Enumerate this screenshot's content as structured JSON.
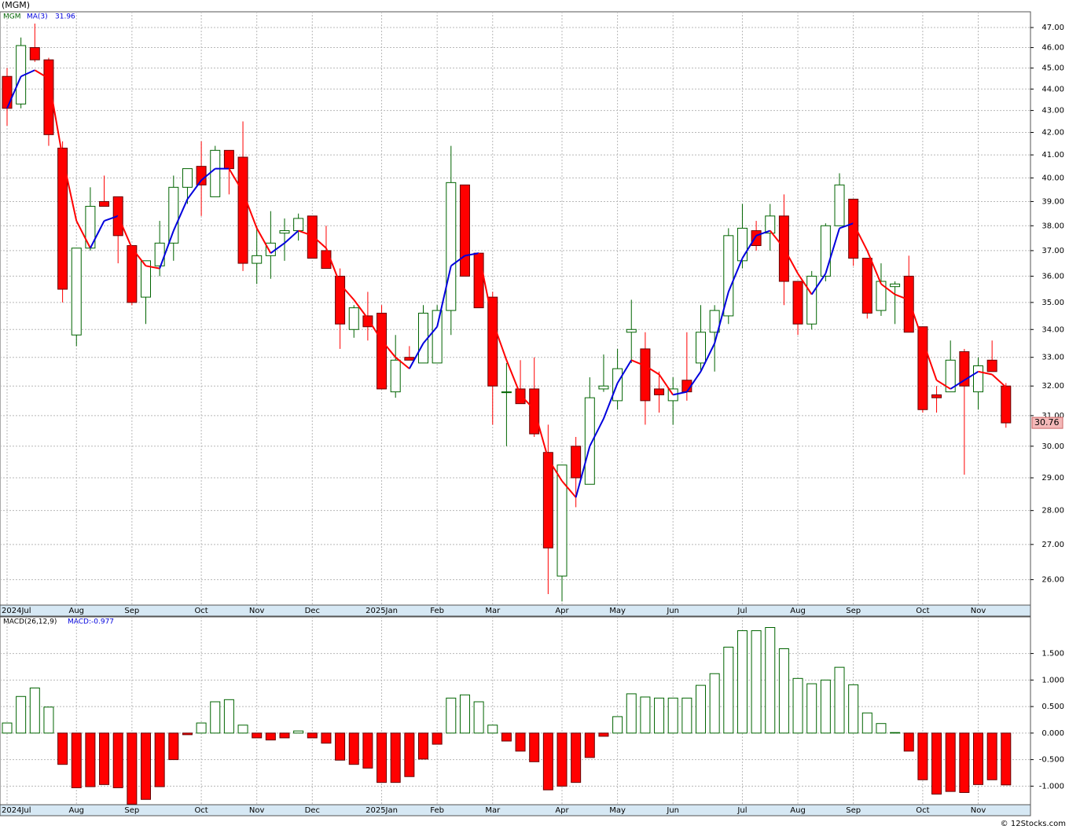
{
  "chart_data": [
    {
      "type": "candlestick",
      "title": "(MGM)",
      "ticker": "MGM",
      "categories": [
        "2024Jul",
        null,
        null,
        null,
        null,
        "Aug",
        null,
        null,
        null,
        "Sep",
        null,
        null,
        null,
        null,
        "Oct",
        null,
        null,
        null,
        "Nov",
        null,
        null,
        null,
        "Dec",
        null,
        null,
        null,
        null,
        "2025Jan",
        null,
        null,
        null,
        "Feb",
        null,
        null,
        null,
        "Mar",
        null,
        null,
        null,
        null,
        "Apr",
        null,
        null,
        null,
        "May",
        null,
        null,
        null,
        "Jun",
        null,
        null,
        null,
        null,
        "Jul",
        null,
        null,
        null,
        "Aug",
        null,
        null,
        null,
        "Sep",
        null,
        null,
        null,
        null,
        "Oct",
        null,
        null,
        null,
        "Nov",
        null,
        null
      ],
      "open": [
        44.6,
        43.3,
        46.0,
        45.4,
        41.3,
        33.8,
        37.1,
        39.0,
        39.2,
        37.2,
        35.2,
        36.4,
        37.3,
        39.6,
        40.5,
        39.2,
        41.2,
        40.9,
        36.5,
        36.8,
        37.7,
        37.8,
        38.4,
        37.0,
        36.0,
        34.0,
        34.5,
        34.6,
        31.8,
        33.0,
        32.8,
        32.8,
        34.7,
        39.7,
        36.9,
        35.2,
        31.8,
        31.9,
        31.9,
        29.8,
        26.1,
        30.0,
        28.8,
        31.9,
        31.5,
        33.9,
        33.3,
        31.9,
        31.5,
        32.2,
        32.8,
        33.9,
        34.5,
        36.6,
        37.8,
        37.7,
        38.4,
        35.8,
        34.2,
        36.0,
        38.0,
        39.1,
        36.7,
        34.7,
        35.6,
        36.0,
        34.1,
        31.7,
        31.8,
        33.2,
        31.8,
        32.9,
        32.0
      ],
      "high": [
        45.0,
        46.5,
        47.2,
        45.5,
        41.6,
        37.1,
        39.6,
        40.1,
        39.2,
        37.2,
        36.6,
        38.2,
        40.1,
        40.4,
        41.6,
        41.4,
        41.2,
        42.5,
        38.0,
        38.6,
        38.3,
        38.5,
        38.4,
        38.0,
        36.3,
        34.9,
        35.4,
        34.9,
        33.8,
        33.4,
        34.9,
        34.9,
        41.4,
        39.7,
        36.9,
        35.4,
        32.8,
        32.9,
        33.0,
        30.7,
        29.4,
        30.3,
        32.3,
        33.1,
        33.3,
        35.1,
        33.9,
        32.5,
        32.3,
        33.9,
        34.9,
        34.9,
        37.9,
        38.9,
        38.2,
        38.9,
        39.3,
        35.8,
        36.2,
        38.1,
        40.2,
        39.1,
        36.7,
        36.5,
        35.8,
        36.8,
        34.1,
        32.0,
        33.6,
        33.3,
        33.0,
        33.6,
        32.1
      ],
      "low": [
        42.3,
        43.1,
        45.3,
        41.4,
        35.0,
        33.4,
        37.0,
        38.8,
        36.5,
        34.9,
        34.2,
        36.0,
        36.6,
        38.9,
        38.4,
        39.2,
        39.3,
        36.2,
        35.7,
        35.9,
        36.6,
        37.4,
        36.7,
        36.3,
        33.3,
        33.7,
        33.6,
        31.9,
        31.6,
        32.9,
        32.8,
        32.8,
        33.8,
        36.0,
        34.8,
        30.7,
        30.0,
        31.4,
        30.3,
        25.6,
        25.4,
        28.1,
        28.8,
        31.8,
        31.2,
        32.8,
        30.7,
        31.1,
        30.7,
        31.5,
        32.5,
        32.5,
        34.2,
        36.3,
        37.0,
        37.0,
        34.9,
        33.8,
        34.0,
        35.8,
        38.0,
        36.4,
        34.4,
        34.5,
        34.2,
        33.9,
        31.1,
        31.1,
        31.8,
        29.1,
        31.2,
        32.5,
        30.6
      ],
      "close": [
        43.1,
        46.1,
        45.4,
        41.9,
        35.5,
        37.1,
        38.8,
        38.8,
        37.6,
        35.0,
        36.6,
        37.3,
        39.6,
        40.4,
        39.7,
        41.2,
        40.4,
        36.5,
        36.8,
        37.3,
        37.8,
        38.3,
        36.7,
        36.3,
        34.2,
        34.8,
        34.1,
        31.9,
        32.9,
        32.9,
        34.6,
        34.7,
        39.8,
        36.0,
        34.8,
        32.0,
        31.8,
        31.4,
        30.4,
        26.9,
        29.4,
        29.0,
        31.6,
        32.0,
        32.6,
        34.0,
        31.5,
        31.7,
        31.9,
        31.8,
        33.9,
        34.7,
        37.6,
        37.9,
        37.2,
        38.4,
        35.8,
        34.2,
        36.0,
        38.0,
        39.7,
        36.7,
        34.6,
        35.8,
        35.7,
        33.9,
        31.2,
        31.6,
        32.9,
        32.0,
        32.7,
        32.5,
        30.76
      ],
      "up_color": "#006400",
      "down_color": "#ff0000",
      "ma": {
        "name": "MA(3)",
        "up_color": "#0000dd",
        "down_color": "#ff0000",
        "values": [
          43.1,
          44.6,
          44.9,
          44.5,
          40.9,
          38.2,
          37.1,
          38.2,
          38.4,
          37.1,
          36.4,
          36.3,
          37.8,
          39.1,
          39.9,
          40.4,
          40.4,
          39.4,
          37.9,
          36.9,
          37.3,
          37.8,
          37.6,
          37.1,
          35.7,
          35.1,
          34.4,
          33.6,
          33.0,
          32.6,
          33.5,
          34.1,
          36.4,
          36.8,
          36.9,
          34.3,
          32.9,
          31.7,
          31.2,
          29.6,
          28.9,
          28.4,
          30.0,
          30.9,
          32.1,
          32.9,
          32.7,
          32.4,
          31.7,
          31.8,
          32.5,
          33.5,
          35.4,
          36.7,
          37.6,
          37.8,
          37.1,
          36.1,
          35.3,
          36.1,
          37.9,
          38.1,
          37.0,
          35.7,
          35.3,
          35.1,
          33.6,
          32.2,
          31.9,
          32.2,
          32.5,
          32.4,
          31.96
        ]
      },
      "ylim": [
        25.3,
        47.8
      ],
      "log_scale": true,
      "grid": true,
      "yticks": [
        {
          "value": 47,
          "label": "47.00"
        },
        {
          "value": 46,
          "label": "46.00"
        },
        {
          "value": 45,
          "label": "45.00"
        },
        {
          "value": 44,
          "label": "44.00"
        },
        {
          "value": 43,
          "label": "43.00"
        },
        {
          "value": 42,
          "label": "42.00"
        },
        {
          "value": 41,
          "label": "41.00"
        },
        {
          "value": 40,
          "label": "40.00"
        },
        {
          "value": 39,
          "label": "39.00"
        },
        {
          "value": 38,
          "label": "38.00"
        },
        {
          "value": 37,
          "label": "37.00"
        },
        {
          "value": 36,
          "label": "36.00"
        },
        {
          "value": 35,
          "label": "35.00"
        },
        {
          "value": 34,
          "label": "34.00"
        },
        {
          "value": 33,
          "label": "33.00"
        },
        {
          "value": 32,
          "label": "32.00"
        },
        {
          "value": 31,
          "label": "31.00"
        },
        {
          "value": 30,
          "label": "30.00"
        },
        {
          "value": 29,
          "label": "29.00"
        },
        {
          "value": 28,
          "label": "28.00"
        },
        {
          "value": 27,
          "label": "27.00"
        },
        {
          "value": 26,
          "label": "26.00"
        }
      ]
    },
    {
      "type": "histogram",
      "title": "MACD(26,12,9)",
      "label": "MACD:-0.977",
      "categories": [
        "2024Jul",
        null,
        null,
        null,
        null,
        "Aug",
        null,
        null,
        null,
        "Sep",
        null,
        null,
        null,
        null,
        "Oct",
        null,
        null,
        null,
        "Nov",
        null,
        null,
        null,
        "Dec",
        null,
        null,
        null,
        null,
        "2025Jan",
        null,
        null,
        null,
        "Feb",
        null,
        null,
        null,
        "Mar",
        null,
        null,
        null,
        null,
        "Apr",
        null,
        null,
        null,
        "May",
        null,
        null,
        null,
        "Jun",
        null,
        null,
        null,
        null,
        "Jul",
        null,
        null,
        null,
        "Aug",
        null,
        null,
        null,
        "Sep",
        null,
        null,
        null,
        null,
        "Oct",
        null,
        null,
        null,
        "Nov",
        null,
        null
      ],
      "values": [
        0.19,
        0.69,
        0.85,
        0.49,
        -0.59,
        -1.03,
        -1.01,
        -0.97,
        -1.03,
        -1.34,
        -1.25,
        -1.01,
        -0.5,
        -0.03,
        0.19,
        0.59,
        0.63,
        0.15,
        -0.09,
        -0.13,
        -0.09,
        0.04,
        -0.09,
        -0.19,
        -0.51,
        -0.59,
        -0.66,
        -0.93,
        -0.93,
        -0.82,
        -0.49,
        -0.21,
        0.66,
        0.72,
        0.59,
        0.15,
        -0.15,
        -0.34,
        -0.54,
        -1.07,
        -1.0,
        -0.93,
        -0.46,
        -0.06,
        0.31,
        0.74,
        0.68,
        0.66,
        0.66,
        0.66,
        0.9,
        1.12,
        1.62,
        1.93,
        1.93,
        1.99,
        1.59,
        1.03,
        0.93,
        1.0,
        1.24,
        0.91,
        0.38,
        0.18,
        0.01,
        -0.34,
        -0.88,
        -1.15,
        -1.1,
        -1.12,
        -0.97,
        -0.88,
        -0.977
      ],
      "pos_color": "#006400",
      "neg_color": "#ff0000",
      "ylim": [
        -1.35,
        2.19
      ],
      "grid": true,
      "yticks": [
        {
          "value": 1.5,
          "label": "1.500"
        },
        {
          "value": 1,
          "label": "1.000"
        },
        {
          "value": 0.5,
          "label": "0.500"
        },
        {
          "value": 0,
          "label": "0.000"
        },
        {
          "value": -0.5,
          "label": "-0.500"
        },
        {
          "value": -1,
          "label": "-1.000"
        }
      ]
    }
  ],
  "footer": "© 12Stocks.com"
}
